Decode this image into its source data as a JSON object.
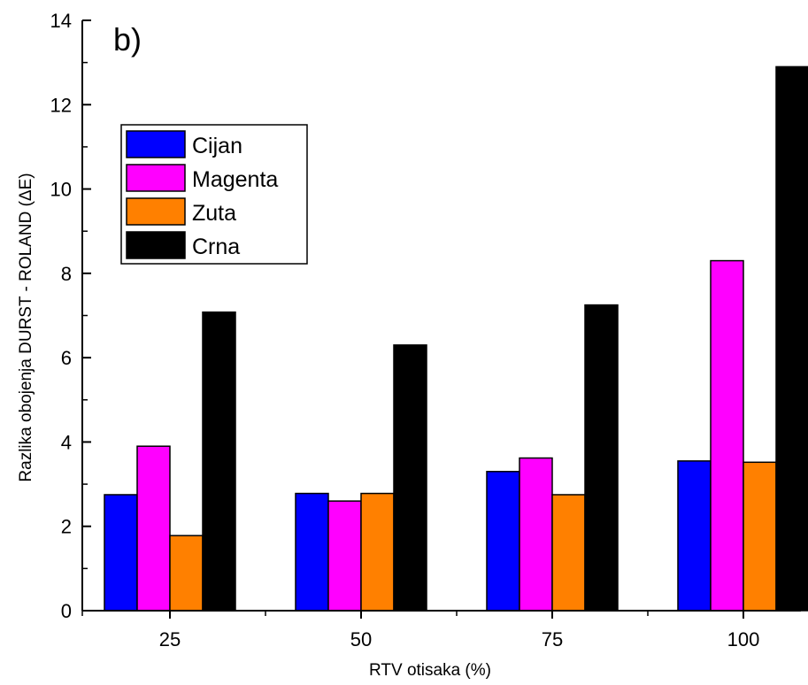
{
  "chart_data": {
    "type": "bar",
    "panel_label": "b)",
    "xlabel": "RTV otisaka (%)",
    "ylabel": "Razlika obojenja DURST - ROLAND (ΔE)",
    "categories": [
      "25",
      "50",
      "75",
      "100"
    ],
    "ylim": [
      0,
      14
    ],
    "yticks": [
      "0",
      "2",
      "4",
      "6",
      "8",
      "10",
      "12",
      "14"
    ],
    "series": [
      {
        "name": "Cijan",
        "color": "#0000ff",
        "values": [
          2.75,
          2.78,
          3.3,
          3.55
        ]
      },
      {
        "name": "Magenta",
        "color": "#ff00ff",
        "values": [
          3.9,
          2.6,
          3.62,
          8.3
        ]
      },
      {
        "name": "Zuta",
        "color": "#ff8000",
        "values": [
          1.78,
          2.78,
          2.75,
          3.52
        ]
      },
      {
        "name": "Crna",
        "color": "#000000",
        "values": [
          7.08,
          6.3,
          7.25,
          12.9
        ]
      }
    ],
    "legend_position": "upper-left",
    "grid": false
  }
}
